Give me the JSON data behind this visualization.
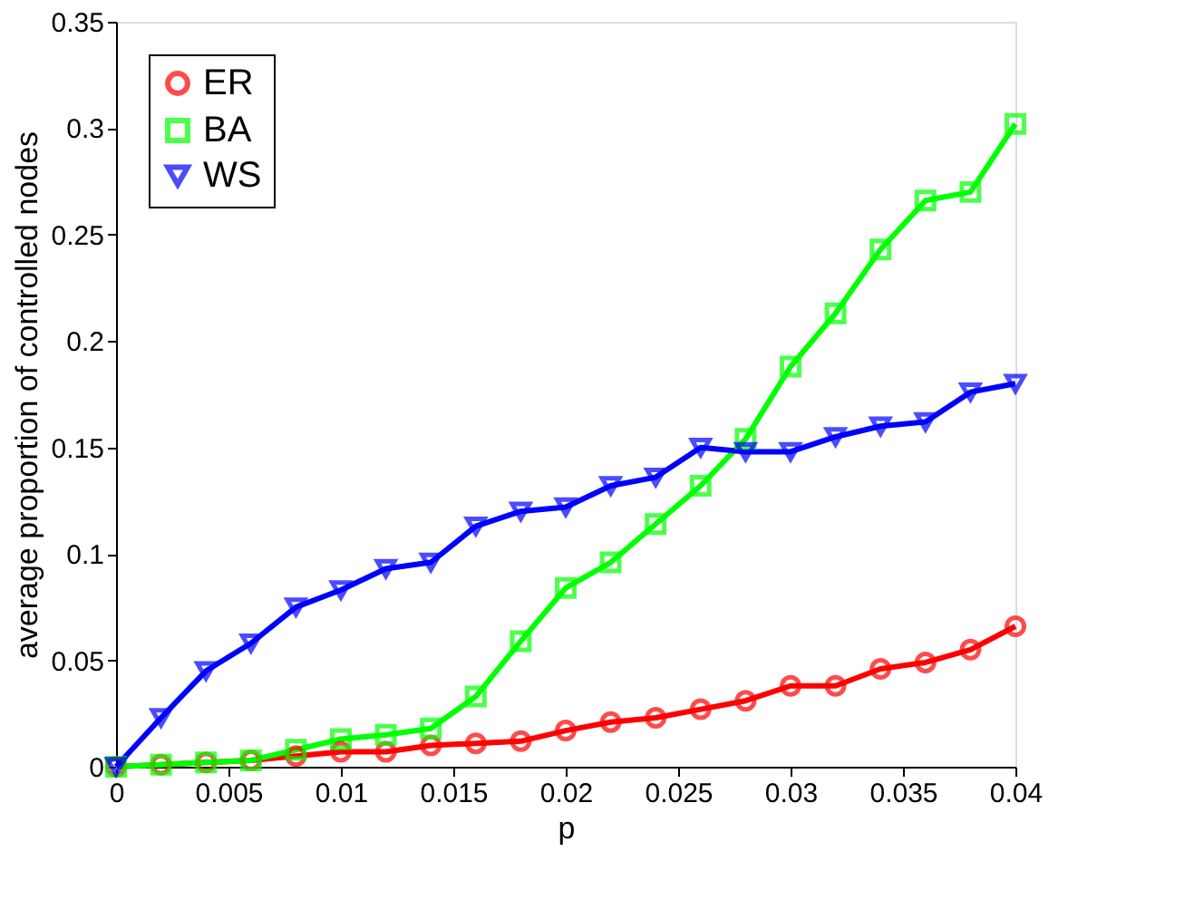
{
  "chart_data": {
    "type": "line",
    "xlabel": "p",
    "ylabel": "average proportion of controlled nodes",
    "x": [
      0,
      0.002,
      0.004,
      0.006,
      0.008,
      0.01,
      0.012,
      0.014,
      0.016,
      0.018,
      0.02,
      0.022,
      0.024,
      0.026,
      0.028,
      0.03,
      0.032,
      0.034,
      0.036,
      0.038,
      0.04
    ],
    "series": [
      {
        "name": "ER",
        "color": "#ff0000",
        "marker": "circle",
        "values": [
          0,
          0.001,
          0.002,
          0.003,
          0.005,
          0.007,
          0.007,
          0.01,
          0.011,
          0.012,
          0.017,
          0.021,
          0.023,
          0.027,
          0.031,
          0.038,
          0.038,
          0.046,
          0.049,
          0.055,
          0.066
        ]
      },
      {
        "name": "BA",
        "color": "#00ff00",
        "marker": "square",
        "values": [
          0,
          0.001,
          0.002,
          0.003,
          0.008,
          0.013,
          0.015,
          0.018,
          0.033,
          0.059,
          0.084,
          0.096,
          0.114,
          0.132,
          0.154,
          0.188,
          0.213,
          0.243,
          0.266,
          0.27,
          0.302
        ]
      },
      {
        "name": "WS",
        "color": "#0000ff",
        "marker": "triangle-down",
        "values": [
          0,
          0.023,
          0.045,
          0.058,
          0.075,
          0.083,
          0.093,
          0.096,
          0.113,
          0.12,
          0.122,
          0.132,
          0.136,
          0.15,
          0.148,
          0.148,
          0.155,
          0.16,
          0.162,
          0.176,
          0.18
        ]
      }
    ],
    "xlim": [
      0,
      0.04
    ],
    "xticks": [
      0,
      0.005,
      0.01,
      0.015,
      0.02,
      0.025,
      0.03,
      0.035,
      0.04
    ],
    "ylim": [
      0,
      0.35
    ],
    "yticks": [
      0,
      0.05,
      0.1,
      0.15,
      0.2,
      0.25,
      0.3,
      0.35
    ],
    "grid": false,
    "legend": "top left",
    "line_style": "solid"
  }
}
